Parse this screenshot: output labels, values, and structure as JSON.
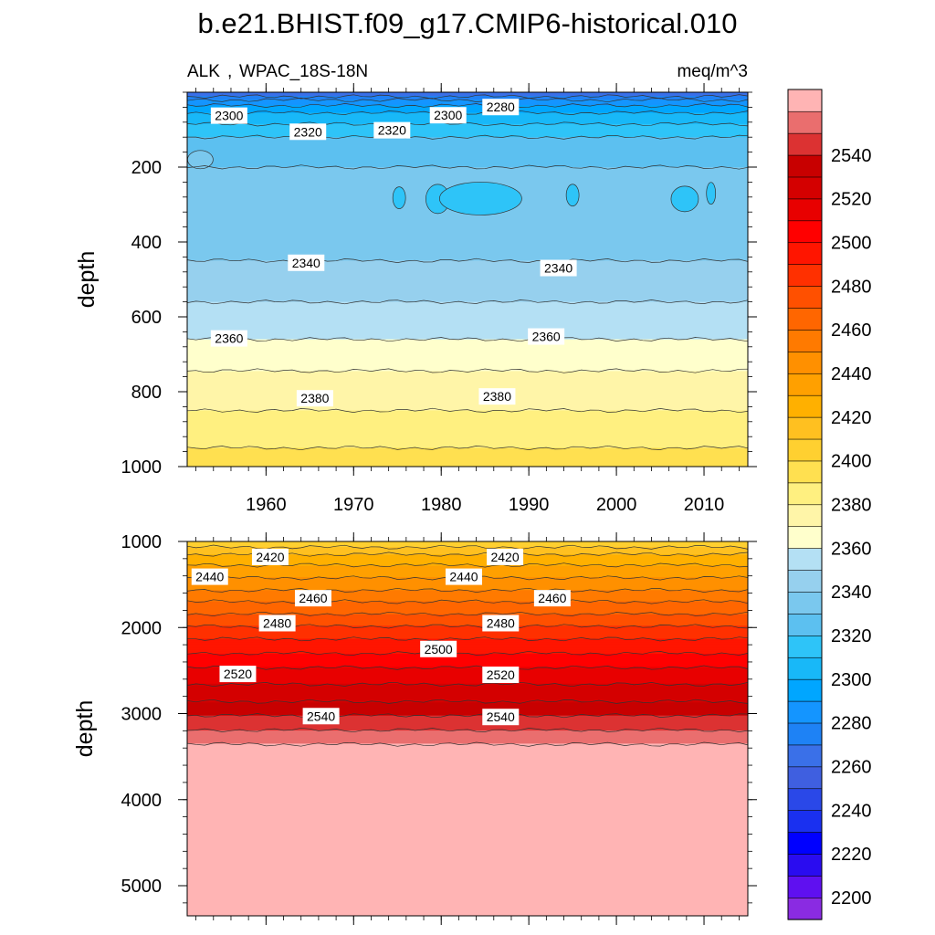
{
  "title": "b.e21.BHIST.f09_g17.CMIP6-historical.010",
  "chart_data": {
    "type": "heatmap",
    "variable": "ALK",
    "region": "WPAC_18S-18N",
    "units": "meq/m^3",
    "x_ticks": [
      1960,
      1970,
      1980,
      1990,
      2000,
      2010
    ],
    "x_range": [
      1951,
      2015
    ],
    "colorbar_ticks": [
      2200,
      2220,
      2240,
      2260,
      2280,
      2300,
      2320,
      2340,
      2360,
      2380,
      2400,
      2420,
      2440,
      2460,
      2480,
      2500,
      2520,
      2540
    ],
    "colorbar_levels": [
      2190,
      2200,
      2210,
      2220,
      2230,
      2240,
      2250,
      2260,
      2270,
      2280,
      2290,
      2300,
      2310,
      2320,
      2330,
      2340,
      2350,
      2360,
      2370,
      2380,
      2390,
      2400,
      2410,
      2420,
      2430,
      2440,
      2450,
      2460,
      2470,
      2480,
      2490,
      2500,
      2510,
      2520,
      2530,
      2540,
      2550,
      2560
    ],
    "colorbar_colors": [
      "#8a2be2",
      "#5f10f0",
      "#2a0cf0",
      "#0000ff",
      "#1a30f0",
      "#2a48e8",
      "#3f5fe0",
      "#3a70e8",
      "#1e82f5",
      "#1495ff",
      "#00a6ff",
      "#18b8f8",
      "#2ec4f8",
      "#5cc0f0",
      "#7ac8ee",
      "#96d0ee",
      "#b4e0f4",
      "#ffffcc",
      "#fff5a8",
      "#fff080",
      "#ffe050",
      "#ffd030",
      "#ffc020",
      "#ffb000",
      "#ffa000",
      "#ff9000",
      "#ff7a00",
      "#ff6600",
      "#ff5000",
      "#ff3000",
      "#ff1500",
      "#ff0000",
      "#e80000",
      "#d40000",
      "#c80000",
      "#dc3232",
      "#ea6e6e",
      "#ffb4b4"
    ],
    "panels": [
      {
        "name": "upper",
        "ylabel": "depth",
        "y_ticks": [
          200,
          400,
          600,
          800,
          1000
        ],
        "y_range": [
          0,
          1000
        ],
        "profile": [
          [
            10,
            2268
          ],
          [
            25,
            2285
          ],
          [
            40,
            2292
          ],
          [
            55,
            2300
          ],
          [
            70,
            2305
          ],
          [
            85,
            2310
          ],
          [
            100,
            2315
          ],
          [
            120,
            2320
          ],
          [
            145,
            2325
          ],
          [
            170,
            2328
          ],
          [
            200,
            2330
          ],
          [
            250,
            2332
          ],
          [
            300,
            2333
          ],
          [
            350,
            2334
          ],
          [
            400,
            2337
          ],
          [
            450,
            2340
          ],
          [
            500,
            2344
          ],
          [
            560,
            2350
          ],
          [
            600,
            2353
          ],
          [
            660,
            2360
          ],
          [
            720,
            2367
          ],
          [
            760,
            2372
          ],
          [
            800,
            2376
          ],
          [
            850,
            2380
          ],
          [
            900,
            2385
          ],
          [
            950,
            2390
          ],
          [
            1000,
            2394
          ]
        ],
        "contour_labels": [
          {
            "text": "2300",
            "year": 1953.8,
            "depth": 65
          },
          {
            "text": "2320",
            "year": 1962.8,
            "depth": 108
          },
          {
            "text": "2320",
            "year": 1972.4,
            "depth": 104
          },
          {
            "text": "2300",
            "year": 1978.8,
            "depth": 64
          },
          {
            "text": "2280",
            "year": 1984.8,
            "depth": 42
          },
          {
            "text": "2340",
            "year": 1962.6,
            "depth": 458
          },
          {
            "text": "2340",
            "year": 1991.4,
            "depth": 472
          },
          {
            "text": "2360",
            "year": 1953.8,
            "depth": 660
          },
          {
            "text": "2360",
            "year": 1990.0,
            "depth": 655
          },
          {
            "text": "2380",
            "year": 1963.6,
            "depth": 820
          },
          {
            "text": "2380",
            "year": 1984.4,
            "depth": 815
          }
        ]
      },
      {
        "name": "lower",
        "ylabel": "depth",
        "y_ticks": [
          1000,
          2000,
          3000,
          4000,
          5000
        ],
        "y_range": [
          1000,
          5350
        ],
        "profile": [
          [
            1000,
            2402
          ],
          [
            1150,
            2420
          ],
          [
            1300,
            2432
          ],
          [
            1500,
            2445
          ],
          [
            1700,
            2460
          ],
          [
            1900,
            2474
          ],
          [
            2100,
            2488
          ],
          [
            2300,
            2500
          ],
          [
            2500,
            2512
          ],
          [
            2700,
            2522
          ],
          [
            2900,
            2532
          ],
          [
            3100,
            2545
          ],
          [
            3300,
            2556
          ],
          [
            3500,
            2570
          ],
          [
            5350,
            2600
          ]
        ],
        "contour_labels": [
          {
            "text": "2420",
            "year": 1958.5,
            "depth": 1190
          },
          {
            "text": "2440",
            "year": 1951.6,
            "depth": 1420
          },
          {
            "text": "2460",
            "year": 1963.4,
            "depth": 1670
          },
          {
            "text": "2480",
            "year": 1959.3,
            "depth": 1960
          },
          {
            "text": "2420",
            "year": 1985.3,
            "depth": 1190
          },
          {
            "text": "2440",
            "year": 1980.6,
            "depth": 1420
          },
          {
            "text": "2460",
            "year": 1990.7,
            "depth": 1670
          },
          {
            "text": "2480",
            "year": 1984.8,
            "depth": 1960
          },
          {
            "text": "2500",
            "year": 1977.7,
            "depth": 2260
          },
          {
            "text": "2520",
            "year": 1954.8,
            "depth": 2550
          },
          {
            "text": "2520",
            "year": 1984.8,
            "depth": 2560
          },
          {
            "text": "2540",
            "year": 1964.3,
            "depth": 3040
          },
          {
            "text": "2540",
            "year": 1984.8,
            "depth": 3050
          }
        ]
      }
    ]
  }
}
